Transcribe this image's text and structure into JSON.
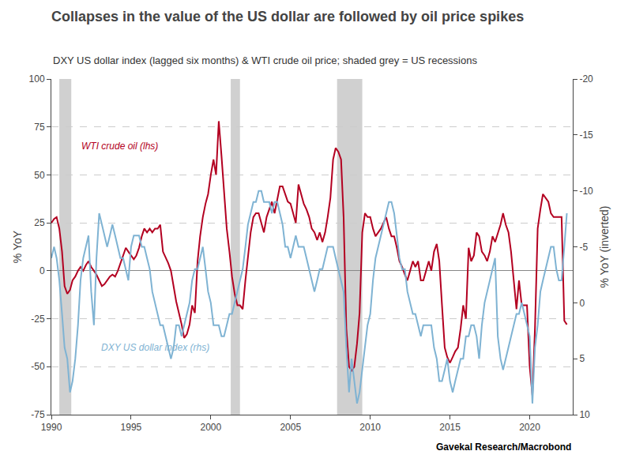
{
  "chart_data": {
    "type": "line",
    "title": "Collapses in the value of the US dollar are followed by oil price spikes",
    "subtitle": "DXY US dollar index (lagged six months) & WTI crude oil price; shaded grey = US recessions",
    "ylabel": "% YoY",
    "y2label": "% YoY (inverted)",
    "credit": "Gavekal Research/Macrobond",
    "grid": true,
    "xlim": [
      1990.0,
      2022.7
    ],
    "xticks": [
      1990,
      1995,
      2000,
      2005,
      2010,
      2015,
      2020
    ],
    "ylim": [
      -75,
      100
    ],
    "yticks": [
      -75,
      -50,
      -25,
      0,
      25,
      50,
      75,
      100
    ],
    "y2lim": [
      10,
      -20
    ],
    "y2ticks": [
      10,
      5,
      0,
      -5,
      -10,
      -15,
      -20
    ],
    "shading": {
      "color": "#d0d0d0",
      "periods": [
        [
          1990.5,
          1991.25
        ],
        [
          2001.25,
          2001.83
        ],
        [
          2007.92,
          2009.5
        ]
      ]
    },
    "x": [
      1990.0,
      1990.17,
      1990.33,
      1990.5,
      1990.67,
      1990.83,
      1991.0,
      1991.17,
      1991.33,
      1991.5,
      1991.67,
      1991.83,
      1992.0,
      1992.17,
      1992.33,
      1992.5,
      1992.67,
      1992.83,
      1993.0,
      1993.17,
      1993.33,
      1993.5,
      1993.67,
      1993.83,
      1994.0,
      1994.17,
      1994.33,
      1994.5,
      1994.67,
      1994.83,
      1995.0,
      1995.17,
      1995.33,
      1995.5,
      1995.67,
      1995.83,
      1996.0,
      1996.17,
      1996.33,
      1996.5,
      1996.67,
      1996.83,
      1997.0,
      1997.17,
      1997.33,
      1997.5,
      1997.67,
      1997.83,
      1998.0,
      1998.17,
      1998.33,
      1998.5,
      1998.67,
      1998.83,
      1999.0,
      1999.17,
      1999.33,
      1999.5,
      1999.67,
      1999.83,
      2000.0,
      2000.17,
      2000.33,
      2000.5,
      2000.67,
      2000.83,
      2001.0,
      2001.17,
      2001.33,
      2001.5,
      2001.67,
      2001.83,
      2002.0,
      2002.17,
      2002.33,
      2002.5,
      2002.67,
      2002.83,
      2003.0,
      2003.17,
      2003.33,
      2003.5,
      2003.67,
      2003.83,
      2004.0,
      2004.17,
      2004.33,
      2004.5,
      2004.67,
      2004.83,
      2005.0,
      2005.17,
      2005.33,
      2005.5,
      2005.67,
      2005.83,
      2006.0,
      2006.17,
      2006.33,
      2006.5,
      2006.67,
      2006.83,
      2007.0,
      2007.17,
      2007.33,
      2007.5,
      2007.67,
      2007.83,
      2008.0,
      2008.17,
      2008.33,
      2008.5,
      2008.67,
      2008.83,
      2009.0,
      2009.17,
      2009.33,
      2009.5,
      2009.67,
      2009.83,
      2010.0,
      2010.17,
      2010.33,
      2010.5,
      2010.67,
      2010.83,
      2011.0,
      2011.17,
      2011.33,
      2011.5,
      2011.67,
      2011.83,
      2012.0,
      2012.17,
      2012.33,
      2012.5,
      2012.67,
      2012.83,
      2013.0,
      2013.17,
      2013.33,
      2013.5,
      2013.67,
      2013.83,
      2014.0,
      2014.17,
      2014.33,
      2014.5,
      2014.67,
      2014.83,
      2015.0,
      2015.17,
      2015.33,
      2015.5,
      2015.67,
      2015.83,
      2016.0,
      2016.17,
      2016.33,
      2016.5,
      2016.67,
      2016.83,
      2017.0,
      2017.17,
      2017.33,
      2017.5,
      2017.67,
      2017.83,
      2018.0,
      2018.17,
      2018.33,
      2018.5,
      2018.67,
      2018.83,
      2019.0,
      2019.17,
      2019.33,
      2019.5,
      2019.67,
      2019.83,
      2020.0,
      2020.17,
      2020.33,
      2020.5,
      2020.67,
      2020.83,
      2021.0,
      2021.17,
      2021.33,
      2021.5,
      2021.67,
      2021.83,
      2022.0,
      2022.17,
      2022.33
    ],
    "series": [
      {
        "name": "WTI crude oil (lhs)",
        "color": "#b30021",
        "values": [
          25,
          27,
          28,
          22,
          10,
          -8,
          -12,
          -10,
          -5,
          -3,
          0,
          2,
          0,
          3,
          5,
          2,
          0,
          -2,
          -5,
          -8,
          -7,
          -5,
          -3,
          -2,
          -3,
          0,
          4,
          8,
          12,
          10,
          8,
          6,
          8,
          12,
          18,
          22,
          20,
          22,
          20,
          22,
          22,
          24,
          10,
          7,
          4,
          0,
          -8,
          -16,
          -22,
          -28,
          -35,
          -33,
          -28,
          -18,
          -22,
          5,
          18,
          28,
          35,
          40,
          50,
          58,
          50,
          78,
          60,
          40,
          22,
          10,
          -3,
          -12,
          -18,
          -18,
          -20,
          -5,
          8,
          20,
          28,
          30,
          30,
          25,
          20,
          28,
          32,
          36,
          30,
          38,
          44,
          44,
          40,
          36,
          35,
          30,
          25,
          45,
          40,
          35,
          32,
          28,
          22,
          20,
          16,
          20,
          15,
          20,
          28,
          38,
          58,
          64,
          62,
          58,
          28,
          -30,
          -50,
          -52,
          -50,
          -38,
          -22,
          20,
          30,
          28,
          28,
          22,
          18,
          20,
          22,
          25,
          28,
          22,
          18,
          18,
          12,
          5,
          2,
          -2,
          -5,
          0,
          5,
          2,
          5,
          -5,
          -5,
          0,
          5,
          0,
          10,
          14,
          5,
          -18,
          -40,
          -45,
          -48,
          -45,
          -42,
          -40,
          -30,
          -18,
          -25,
          12,
          5,
          8,
          20,
          18,
          10,
          8,
          5,
          10,
          18,
          15,
          20,
          24,
          30,
          24,
          20,
          10,
          -5,
          -20,
          -5,
          -18,
          -18,
          -18,
          -50,
          -65,
          -30,
          22,
          32,
          40,
          38,
          36,
          30,
          28,
          28,
          28,
          28,
          -26,
          -28
        ]
      },
      {
        "name": "DXY US dollar index (rhs)",
        "color": "#7fb3d3",
        "axis": "y2",
        "values": [
          -4,
          -5,
          -4,
          -2,
          1,
          4,
          5,
          8,
          7,
          5,
          2,
          -2,
          -4,
          -5,
          -6,
          -1,
          2,
          -4,
          -8,
          -7,
          -6,
          -5,
          -6,
          -7,
          -6,
          -5,
          -4,
          -4,
          -3,
          -2,
          -5,
          -6,
          -6,
          -6,
          -5,
          -5,
          -4,
          -3,
          -1,
          0,
          1,
          2,
          2,
          3,
          4,
          5,
          4,
          2,
          2,
          3,
          2,
          1,
          0,
          -2,
          -3,
          -3,
          -4,
          -5,
          -3,
          -1,
          0,
          2,
          2,
          2,
          3,
          3,
          2,
          1,
          1,
          0,
          -1,
          -2,
          -3,
          -5,
          -7,
          -8,
          -9,
          -9,
          -10,
          -10,
          -9,
          -9,
          -9,
          -8,
          -9,
          -9,
          -8,
          -7,
          -5,
          -5,
          -4,
          -5,
          -6,
          -5,
          -5,
          -5,
          -4,
          -3,
          -2,
          -1,
          -2,
          -3,
          -3,
          -4,
          -5,
          -5,
          -5,
          -4,
          -3,
          -2,
          -1,
          4,
          8,
          5,
          7,
          9,
          8,
          6,
          4,
          2,
          1,
          -2,
          -4,
          -5,
          -6,
          -7,
          -8,
          -9,
          -9,
          -8,
          -6,
          -4,
          -3,
          -3,
          -1,
          0,
          1,
          1,
          2,
          3,
          2,
          2,
          2,
          2,
          4,
          5,
          7,
          7,
          6,
          5,
          7,
          8,
          7,
          6,
          5,
          5,
          3,
          3,
          2,
          2,
          3,
          5,
          2,
          0,
          -1,
          -2,
          -3,
          -4,
          3,
          5,
          6,
          5,
          4,
          3,
          2,
          1,
          1,
          0,
          1,
          2,
          3,
          9,
          4,
          2,
          -1,
          -2,
          -3,
          -4,
          -5,
          -5,
          -3,
          -2,
          -2,
          -5,
          -8
        ]
      }
    ]
  }
}
